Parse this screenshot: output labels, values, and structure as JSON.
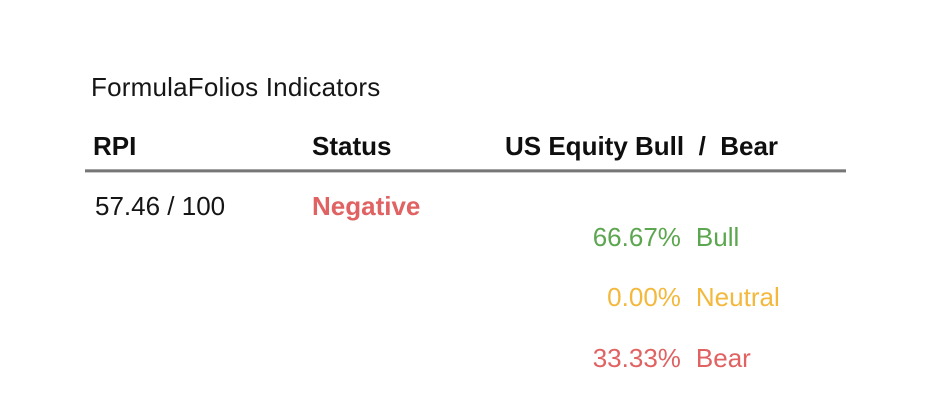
{
  "widget": {
    "title": "FormulaFolios Indicators"
  },
  "table": {
    "columns": [
      {
        "key": "rpi",
        "label": "RPI"
      },
      {
        "key": "status",
        "label": "Status"
      },
      {
        "key": "bull_bear",
        "label": "US Equity Bull  /  Bear"
      }
    ],
    "row": {
      "rpi_value": "57.46 / 100",
      "status_value": "Negative",
      "status_color": "#e06262"
    },
    "breakdown": [
      {
        "percent": "66.67%",
        "label": "Bull",
        "color": "#5ba64e"
      },
      {
        "percent": "0.00%",
        "label": "Neutral",
        "color": "#f3b83c"
      },
      {
        "percent": "33.33%",
        "label": "Bear",
        "color": "#e06262"
      }
    ]
  },
  "colors": {
    "background": "#ffffff",
    "text": "#151515",
    "divider": "#767676",
    "negative_red": "#e06262",
    "bull_green": "#5ba64e",
    "neutral_yellow": "#f3b83c",
    "bear_red": "#e06262"
  },
  "chart_data": {
    "type": "table",
    "title": "FormulaFolios Indicators",
    "columns": [
      "RPI",
      "Status",
      "US Equity Bull / Bear"
    ],
    "rows": [
      [
        "57.46 / 100",
        "Negative",
        "66.67% Bull | 0.00% Neutral | 33.33% Bear"
      ]
    ],
    "rpi": {
      "value": 57.46,
      "max": 100
    },
    "status": "Negative",
    "us_equity_bull_bear": {
      "bull_pct": 66.67,
      "neutral_pct": 0.0,
      "bear_pct": 33.33
    }
  }
}
